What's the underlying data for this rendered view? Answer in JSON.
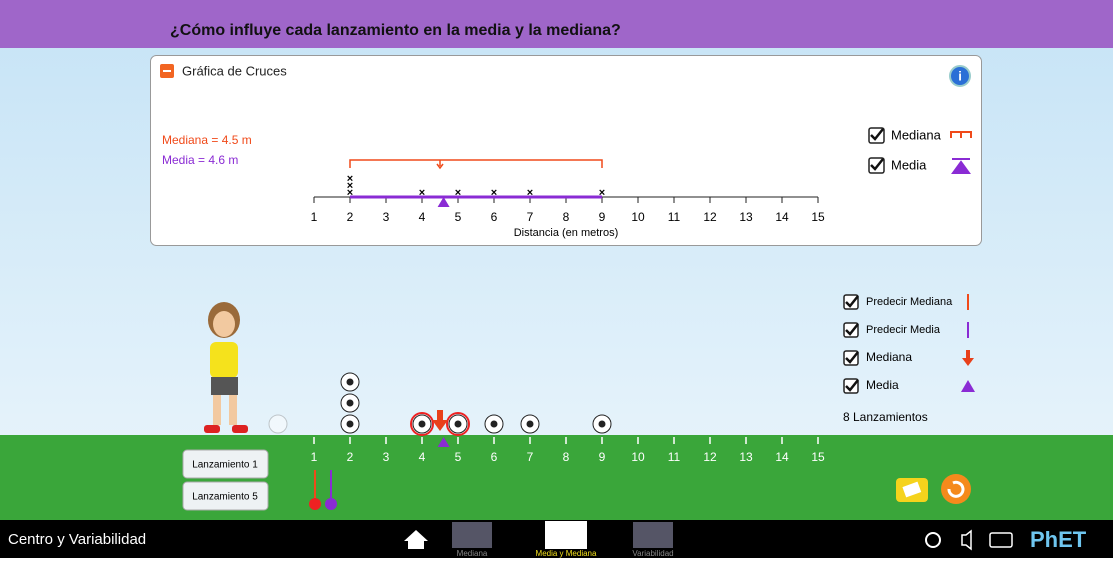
{
  "header": {
    "title": "¿Cómo influye cada lanzamiento en la media y la mediana?"
  },
  "panel": {
    "title": "Gráfica de Cruces",
    "median_label": "Mediana = 4.5 m",
    "mean_label": "Media = 4.6 m",
    "x_axis_label": "Distancia (en metros)",
    "checkboxes": [
      "Mediana",
      "Media"
    ]
  },
  "dot_plot": {
    "values": [
      2,
      2,
      2,
      4,
      5,
      6,
      7,
      9
    ],
    "median": 4.5,
    "mean": 4.6,
    "xlim": [
      1,
      15
    ],
    "xticks": [
      1,
      2,
      3,
      4,
      5,
      6,
      7,
      8,
      9,
      10,
      11,
      12,
      13,
      14,
      15
    ]
  },
  "controls": {
    "checkboxes": [
      "Predecir Mediana",
      "Predecir Media",
      "Mediana",
      "Media"
    ],
    "launch_count": "8 Lanzamientos",
    "buttons": [
      "Lanzamiento 1",
      "Lanzamiento 5"
    ]
  },
  "footer": {
    "title": "Centro y Variabilidad",
    "tabs": [
      "Mediana",
      "Media y Mediana",
      "Variabilidad"
    ],
    "logo": "PhET"
  }
}
